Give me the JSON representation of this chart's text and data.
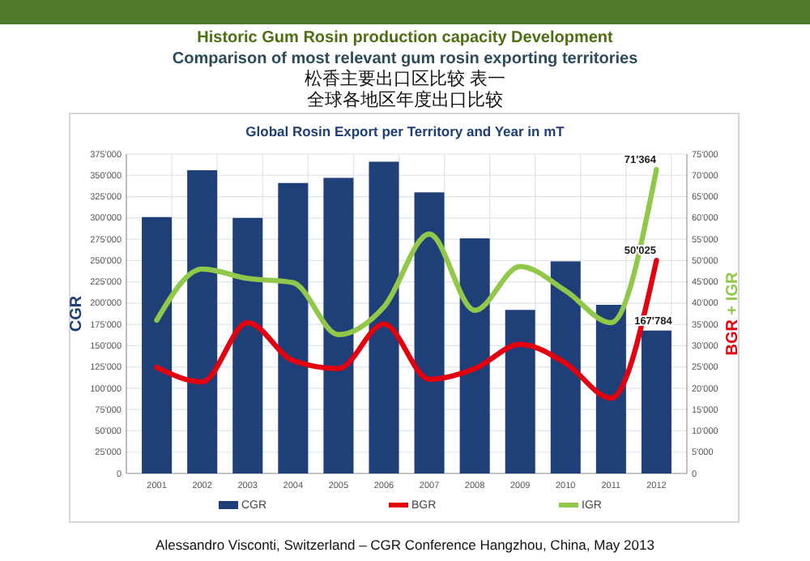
{
  "chart_data": {
    "type": "bar",
    "title": "Historic Gum Rosin production capacity Development",
    "subtitle": "Comparison of most relevant gum rosin exporting territories",
    "annotations": [
      "松香主要出口区比较 表一",
      "全球各地区年度出口比较",
      "Global Rosin Export per Territory and Year in mT",
      "Alessandro Visconti, Switzerland – CGR Conference Hangzhou, China, May 2013"
    ],
    "ylabel": "CGR",
    "y2label": "BGR + IGR",
    "categories": [
      "2001",
      "2002",
      "2003",
      "2004",
      "2005",
      "2006",
      "2007",
      "2008",
      "2009",
      "2010",
      "2011",
      "2012"
    ],
    "series": [
      {
        "name": "CGR",
        "color": "#1f3f78",
        "values": [
          301000,
          356000,
          300000,
          341000,
          347000,
          366000,
          330000,
          276000,
          192000,
          249000,
          198000,
          167784
        ],
        "value_labels": [
          null,
          null,
          null,
          null,
          null,
          null,
          null,
          null,
          null,
          null,
          null,
          "167'784"
        ]
      },
      {
        "name": "BGR",
        "type": "line",
        "axis": "y2",
        "color": "#e3000f",
        "values": [
          24900,
          21500,
          35400,
          26500,
          24600,
          35100,
          22100,
          24600,
          30300,
          25900,
          17700,
          50025
        ],
        "value_labels": [
          null,
          null,
          null,
          null,
          null,
          null,
          null,
          null,
          null,
          null,
          null,
          "50'025"
        ]
      },
      {
        "name": "IGR",
        "type": "line",
        "axis": "y2",
        "color": "#92c84a",
        "values": [
          36000,
          48000,
          45800,
          44800,
          32600,
          39100,
          56200,
          38300,
          48600,
          42900,
          35400,
          71364
        ],
        "value_labels": [
          null,
          null,
          null,
          null,
          null,
          null,
          null,
          null,
          null,
          null,
          null,
          "71'364"
        ]
      }
    ],
    "ylim": [
      0,
      375000
    ],
    "yticks": [
      0,
      {
        "value": 25000,
        "label": "25'000"
      },
      {
        "value": 50000,
        "label": "50'000"
      },
      {
        "value": 75000,
        "label": "75'000"
      },
      {
        "value": 100000,
        "label": "100'000"
      },
      {
        "value": 125000,
        "label": "125'000"
      },
      {
        "value": 150000,
        "label": "150'000"
      },
      {
        "value": 175000,
        "label": "175'000"
      },
      {
        "value": 200000,
        "label": "200'000"
      },
      {
        "value": 225000,
        "label": "225'000"
      },
      {
        "value": 250000,
        "label": "250'000"
      },
      {
        "value": 275000,
        "label": "275'000"
      },
      {
        "value": 300000,
        "label": "300'000"
      },
      {
        "value": 325000,
        "label": "325'000"
      },
      {
        "value": 350000,
        "label": "350'000"
      },
      {
        "value": 375000,
        "label": "375'000"
      }
    ],
    "y2lim": [
      0,
      75000
    ],
    "y2ticks": [
      0,
      {
        "value": 5000,
        "label": "5'000"
      },
      {
        "value": 10000,
        "label": "10'000"
      },
      {
        "value": 15000,
        "label": "15'000"
      },
      {
        "value": 20000,
        "label": "20'000"
      },
      {
        "value": 25000,
        "label": "25'000"
      },
      {
        "value": 30000,
        "label": "30'000"
      },
      {
        "value": 35000,
        "label": "35'000"
      },
      {
        "value": 40000,
        "label": "40'000"
      },
      {
        "value": 45000,
        "label": "45'000"
      },
      {
        "value": 50000,
        "label": "50'000"
      },
      {
        "value": 55000,
        "label": "55'000"
      },
      {
        "value": 60000,
        "label": "60'000"
      },
      {
        "value": 65000,
        "label": "65'000"
      },
      {
        "value": 70000,
        "label": "70'000"
      },
      {
        "value": 75000,
        "label": "75'000"
      }
    ],
    "grid": true,
    "legend": "bottom",
    "marker": "none",
    "line_style": "solid"
  }
}
